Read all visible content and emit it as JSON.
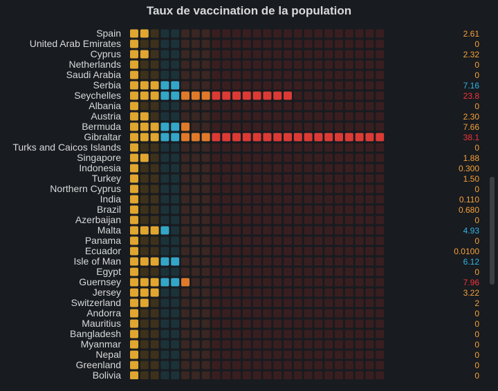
{
  "title": "Taux de vaccination de la population",
  "colors": {
    "background": "#181b1f",
    "text": "#d8d9da",
    "palette_bright": [
      "#e0a630",
      "#e0a630",
      "#e0a630",
      "#34a6c8",
      "#34a6c8",
      "#e07a2a",
      "#e07a2a",
      "#e07a2a",
      "#dc3a34",
      "#dc3a34",
      "#dc3a34",
      "#dc3a34",
      "#dc3a34",
      "#dc3a34",
      "#dc3a34",
      "#dc3a34",
      "#dc3a34",
      "#dc3a34",
      "#dc3a34",
      "#dc3a34",
      "#dc3a34",
      "#dc3a34",
      "#dc3a34",
      "#dc3a34",
      "#dc3a34"
    ],
    "palette_dim": [
      "#3d311c",
      "#3d311c",
      "#3d311c",
      "#1c3239",
      "#1c3239",
      "#3a2622",
      "#3a2622",
      "#3a2622",
      "#391e20",
      "#391e20",
      "#391e20",
      "#391e20",
      "#391e20",
      "#391e20",
      "#391e20",
      "#391e20",
      "#391e20",
      "#391e20",
      "#391e20",
      "#391e20",
      "#391e20",
      "#391e20",
      "#391e20",
      "#391e20",
      "#391e20"
    ],
    "value_text": {
      "orange": "#f7a23b",
      "blue": "#33b5e5",
      "red": "#f2353b"
    }
  },
  "chart_data": {
    "type": "bar",
    "style": "led-gauge",
    "title": "Taux de vaccination de la population",
    "unit_cells": 25,
    "cell_step": 1.5,
    "rows": [
      {
        "label": "Spain",
        "value": 2.61,
        "display": "2.61",
        "lit": 2,
        "color": "orange"
      },
      {
        "label": "United Arab Emirates",
        "value": 0,
        "display": "0",
        "lit": 1,
        "color": "orange"
      },
      {
        "label": "Cyprus",
        "value": 2.32,
        "display": "2.32",
        "lit": 2,
        "color": "orange"
      },
      {
        "label": "Netherlands",
        "value": 0,
        "display": "0",
        "lit": 1,
        "color": "orange"
      },
      {
        "label": "Saudi Arabia",
        "value": 0,
        "display": "0",
        "lit": 1,
        "color": "orange"
      },
      {
        "label": "Serbia",
        "value": 7.16,
        "display": "7.16",
        "lit": 5,
        "color": "blue"
      },
      {
        "label": "Seychelles",
        "value": 23.8,
        "display": "23.8",
        "lit": 16,
        "color": "red"
      },
      {
        "label": "Albania",
        "value": 0,
        "display": "0",
        "lit": 1,
        "color": "orange"
      },
      {
        "label": "Austria",
        "value": 2.3,
        "display": "2.30",
        "lit": 2,
        "color": "orange"
      },
      {
        "label": "Bermuda",
        "value": 7.66,
        "display": "7.66",
        "lit": 6,
        "color": "orange"
      },
      {
        "label": "Gibraltar",
        "value": 38.1,
        "display": "38.1",
        "lit": 25,
        "color": "red"
      },
      {
        "label": "Turks and Caicos Islands",
        "value": 0,
        "display": "0",
        "lit": 1,
        "color": "orange"
      },
      {
        "label": "Singapore",
        "value": 1.88,
        "display": "1.88",
        "lit": 2,
        "color": "orange"
      },
      {
        "label": "Indonesia",
        "value": 0.3,
        "display": "0.300",
        "lit": 1,
        "color": "orange"
      },
      {
        "label": "Turkey",
        "value": 1.5,
        "display": "1.50",
        "lit": 1,
        "color": "orange"
      },
      {
        "label": "Northern Cyprus",
        "value": 0,
        "display": "0",
        "lit": 1,
        "color": "orange"
      },
      {
        "label": "India",
        "value": 0.11,
        "display": "0.110",
        "lit": 1,
        "color": "orange"
      },
      {
        "label": "Brazil",
        "value": 0.68,
        "display": "0.680",
        "lit": 1,
        "color": "orange"
      },
      {
        "label": "Azerbaijan",
        "value": 0,
        "display": "0",
        "lit": 1,
        "color": "orange"
      },
      {
        "label": "Malta",
        "value": 4.93,
        "display": "4.93",
        "lit": 4,
        "color": "blue"
      },
      {
        "label": "Panama",
        "value": 0,
        "display": "0",
        "lit": 1,
        "color": "orange"
      },
      {
        "label": "Ecuador",
        "value": 0.01,
        "display": "0.0100",
        "lit": 1,
        "color": "orange"
      },
      {
        "label": "Isle of Man",
        "value": 6.12,
        "display": "6.12",
        "lit": 5,
        "color": "blue"
      },
      {
        "label": "Egypt",
        "value": 0,
        "display": "0",
        "lit": 1,
        "color": "orange"
      },
      {
        "label": "Guernsey",
        "value": 7.96,
        "display": "7.96",
        "lit": 6,
        "color": "red"
      },
      {
        "label": "Jersey",
        "value": 3.22,
        "display": "3.22",
        "lit": 3,
        "color": "orange"
      },
      {
        "label": "Switzerland",
        "value": 2,
        "display": "2",
        "lit": 2,
        "color": "orange"
      },
      {
        "label": "Andorra",
        "value": 0,
        "display": "0",
        "lit": 1,
        "color": "orange"
      },
      {
        "label": "Mauritius",
        "value": 0,
        "display": "0",
        "lit": 1,
        "color": "orange"
      },
      {
        "label": "Bangladesh",
        "value": 0,
        "display": "0",
        "lit": 1,
        "color": "orange"
      },
      {
        "label": "Myanmar",
        "value": 0,
        "display": "0",
        "lit": 1,
        "color": "orange"
      },
      {
        "label": "Nepal",
        "value": 0,
        "display": "0",
        "lit": 1,
        "color": "orange"
      },
      {
        "label": "Greenland",
        "value": 0,
        "display": "0",
        "lit": 1,
        "color": "orange"
      },
      {
        "label": "Bolivia",
        "value": 0,
        "display": "0",
        "lit": 1,
        "color": "orange"
      }
    ]
  }
}
